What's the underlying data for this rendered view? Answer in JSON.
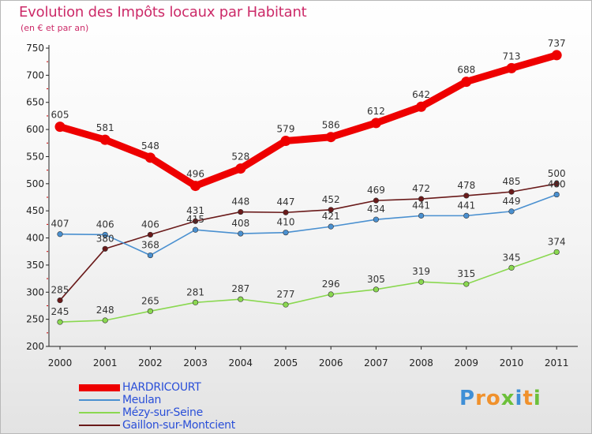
{
  "header": {
    "title": "Evolution des Impôts locaux par Habitant",
    "subtitle": "(en € et par an)"
  },
  "logo": {
    "letters": [
      "P",
      "r",
      "o",
      "x",
      "i",
      "t",
      "i"
    ]
  },
  "colors": {
    "title": "#cc2a68",
    "legend_text": "#2a4fd8",
    "logo_letters": [
      "#3f8fd6",
      "#f0912c",
      "#f0912c",
      "#6cc03a",
      "#3f8fd6",
      "#f0912c",
      "#6cc03a"
    ]
  },
  "chart_data": {
    "type": "line",
    "title": "Evolution des Impôts locaux par Habitant",
    "subtitle": "(en € et par an)",
    "x": [
      "2000",
      "2001",
      "2002",
      "2003",
      "2004",
      "2005",
      "2006",
      "2007",
      "2008",
      "2009",
      "2010",
      "2011"
    ],
    "ylim": [
      200,
      750
    ],
    "yticks": [
      200,
      250,
      300,
      350,
      400,
      450,
      500,
      550,
      600,
      650,
      700,
      750
    ],
    "grid": false,
    "legend_position": "bottom-left",
    "series": [
      {
        "name": "HARDRICOURT",
        "color": "#ee0000",
        "values": [
          605,
          581,
          548,
          496,
          528,
          579,
          586,
          612,
          642,
          688,
          713,
          737
        ]
      },
      {
        "name": "Meulan",
        "color": "#4a90d0",
        "values": [
          407,
          406,
          368,
          415,
          408,
          410,
          421,
          434,
          441,
          441,
          449,
          480
        ]
      },
      {
        "name": "Mézy-sur-Seine",
        "color": "#8ad850",
        "values": [
          245,
          248,
          265,
          281,
          287,
          277,
          296,
          305,
          319,
          315,
          345,
          374
        ]
      },
      {
        "name": "Gaillon-sur-Montcient",
        "color": "#6a1a1a",
        "values": [
          285,
          380,
          406,
          431,
          448,
          447,
          452,
          469,
          472,
          478,
          485,
          500
        ]
      }
    ]
  }
}
